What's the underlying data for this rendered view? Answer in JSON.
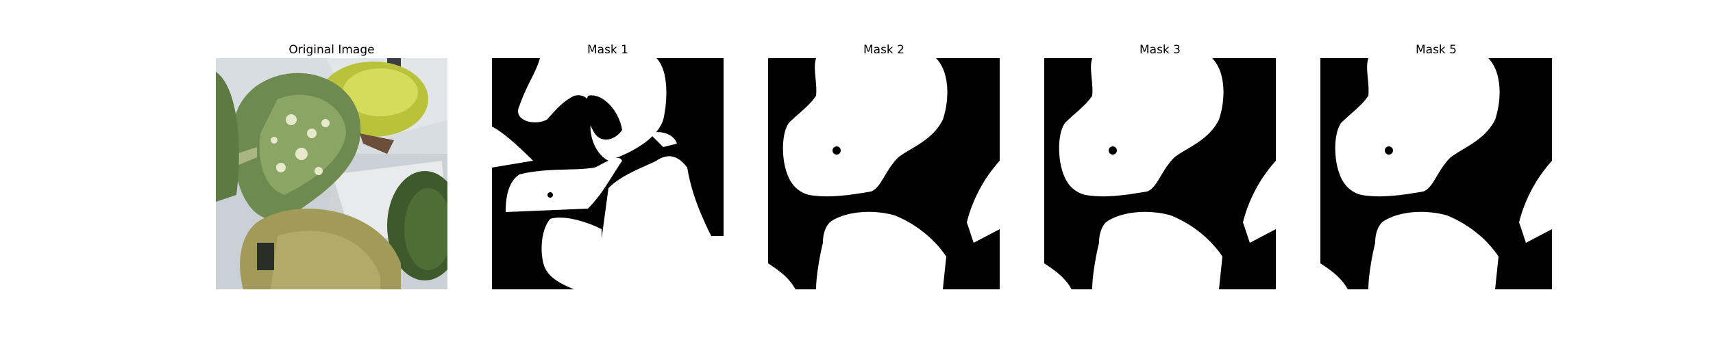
{
  "figure": {
    "panels": [
      {
        "title": "Original Image",
        "kind": "photo"
      },
      {
        "title": "Mask 1",
        "kind": "mask"
      },
      {
        "title": "Mask 2",
        "kind": "mask"
      },
      {
        "title": "Mask 3",
        "kind": "mask"
      },
      {
        "title": "Mask 5",
        "kind": "mask"
      }
    ]
  },
  "colors": {
    "mask_foreground": "#ffffff",
    "mask_background": "#000000"
  }
}
